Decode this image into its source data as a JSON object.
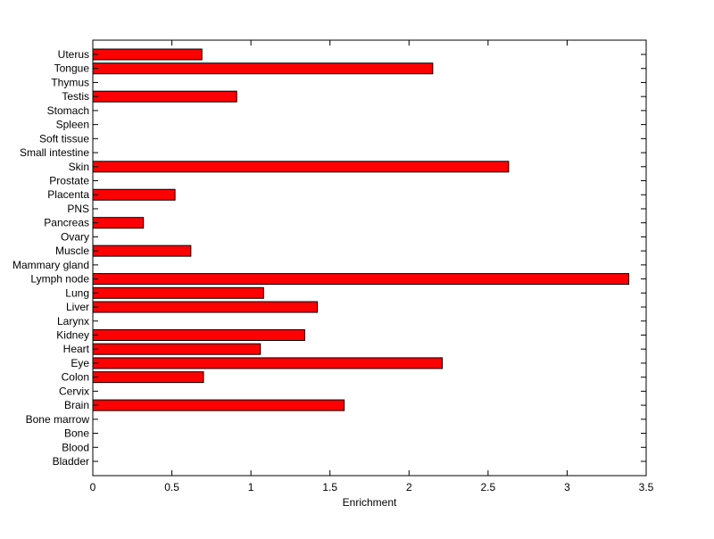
{
  "chart_data": {
    "type": "bar",
    "orientation": "horizontal",
    "title": "",
    "xlabel": "Enrichment",
    "ylabel": "",
    "xlim": [
      0,
      3.5
    ],
    "xticks": [
      "0",
      "0.5",
      "1",
      "1.5",
      "2",
      "2.5",
      "3",
      "3.5"
    ],
    "grid": false,
    "bar_color": "#ff0000",
    "categories": [
      "Uterus",
      "Tongue",
      "Thymus",
      "Testis",
      "Stomach",
      "Spleen",
      "Soft tissue",
      "Small intestine",
      "Skin",
      "Prostate",
      "Placenta",
      "PNS",
      "Pancreas",
      "Ovary",
      "Muscle",
      "Mammary gland",
      "Lymph node",
      "Lung",
      "Liver",
      "Larynx",
      "Kidney",
      "Heart",
      "Eye",
      "Colon",
      "Cervix",
      "Brain",
      "Bone marrow",
      "Bone",
      "Blood",
      "Bladder"
    ],
    "values": [
      0.69,
      2.15,
      0,
      0.91,
      0,
      0,
      0,
      0,
      2.63,
      0,
      0.52,
      0,
      0.32,
      0,
      0.62,
      0,
      3.39,
      1.08,
      1.42,
      0,
      1.34,
      1.06,
      2.21,
      0.7,
      0,
      1.59,
      0,
      0,
      0,
      0
    ]
  }
}
